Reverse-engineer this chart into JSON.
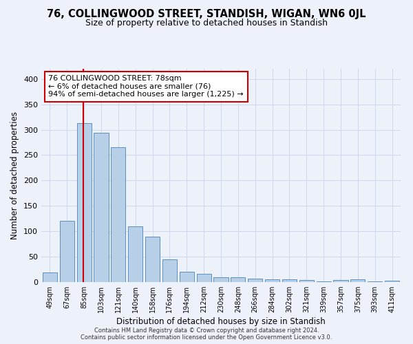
{
  "title1": "76, COLLINGWOOD STREET, STANDISH, WIGAN, WN6 0JL",
  "title2": "Size of property relative to detached houses in Standish",
  "xlabel": "Distribution of detached houses by size in Standish",
  "ylabel": "Number of detached properties",
  "bar_labels": [
    "49sqm",
    "67sqm",
    "85sqm",
    "103sqm",
    "121sqm",
    "140sqm",
    "158sqm",
    "176sqm",
    "194sqm",
    "212sqm",
    "230sqm",
    "248sqm",
    "266sqm",
    "284sqm",
    "302sqm",
    "321sqm",
    "339sqm",
    "357sqm",
    "375sqm",
    "393sqm",
    "411sqm"
  ],
  "bar_values": [
    19,
    121,
    313,
    294,
    265,
    110,
    89,
    45,
    20,
    16,
    9,
    9,
    7,
    6,
    5,
    4,
    2,
    4,
    5,
    2,
    3
  ],
  "bar_color": "#b8cfe8",
  "bar_edge_color": "#5a8fc2",
  "annotation_box_text": "76 COLLINGWOOD STREET: 78sqm\n← 6% of detached houses are smaller (76)\n94% of semi-detached houses are larger (1,225) →",
  "annotation_box_color": "#ffffff",
  "annotation_box_edge_color": "#cc0000",
  "vline_color": "#cc0000",
  "grid_color": "#c8d4e8",
  "background_color": "#edf2fa",
  "footer_line1": "Contains HM Land Registry data © Crown copyright and database right 2024.",
  "footer_line2": "Contains public sector information licensed under the Open Government Licence v3.0.",
  "ylim": [
    0,
    420
  ],
  "yticks": [
    0,
    50,
    100,
    150,
    200,
    250,
    300,
    350,
    400
  ]
}
